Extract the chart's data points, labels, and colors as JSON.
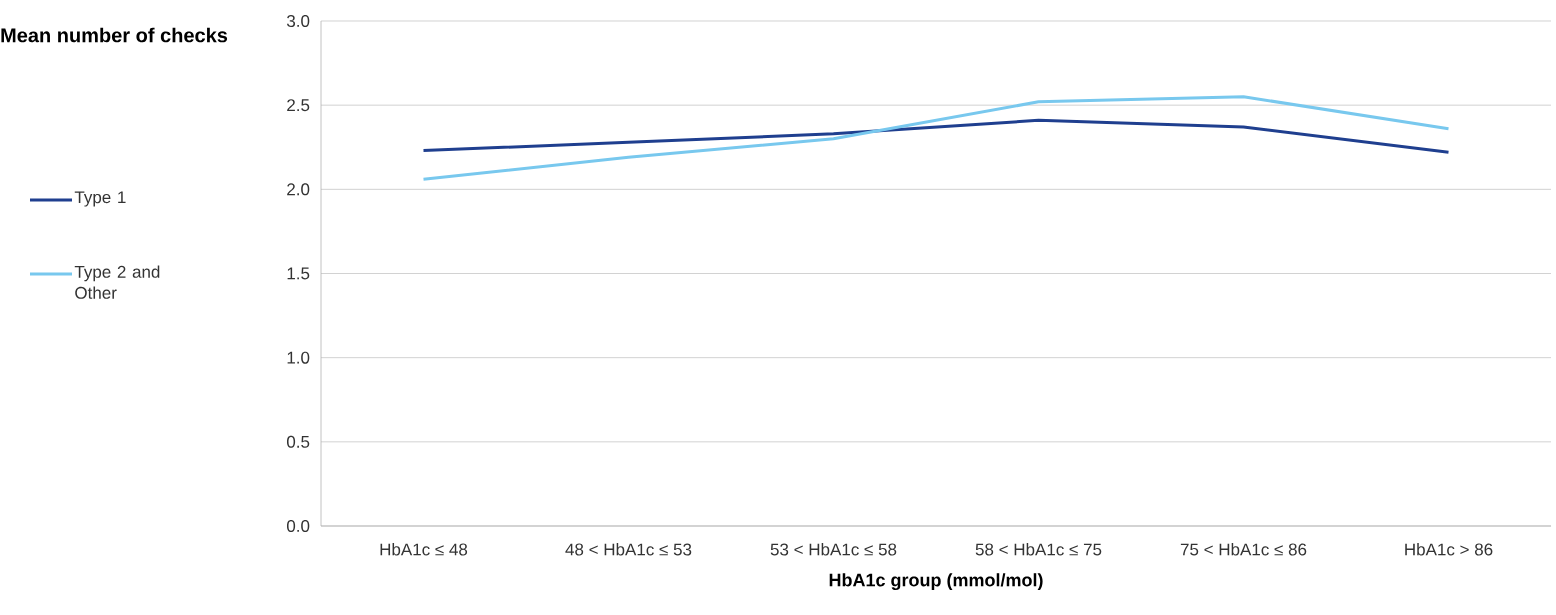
{
  "chart_data": {
    "type": "line",
    "xlabel": "HbA1c group (mmol/mol)",
    "ylabel": "Mean number of checks",
    "categories": [
      "HbA1c ≤ 48",
      "48 < HbA1c ≤ 53",
      "53 < HbA1c ≤ 58",
      "58 < HbA1c ≤ 75",
      "75 < HbA1c ≤ 86",
      "HbA1c > 86"
    ],
    "series": [
      {
        "name": "Type 1",
        "color": "#1f3f8f",
        "values": [
          2.23,
          2.28,
          2.33,
          2.41,
          2.37,
          2.22
        ]
      },
      {
        "name": "Type 2 and Other",
        "color": "#78c8ee",
        "values": [
          2.06,
          2.19,
          2.3,
          2.52,
          2.55,
          2.36
        ]
      }
    ],
    "ylim": [
      0,
      3
    ],
    "yticks": [
      {
        "value": 0,
        "label": "0.0"
      },
      {
        "value": 0.5,
        "label": "0.5"
      },
      {
        "value": 1,
        "label": "1.0"
      },
      {
        "value": 1.5,
        "label": "1.5"
      },
      {
        "value": 2,
        "label": "2.0"
      },
      {
        "value": 2.5,
        "label": "2.5"
      },
      {
        "value": 3,
        "label": "3.0"
      }
    ],
    "grid": "y",
    "legend": "left",
    "marker": "none",
    "line_style": "solid"
  }
}
